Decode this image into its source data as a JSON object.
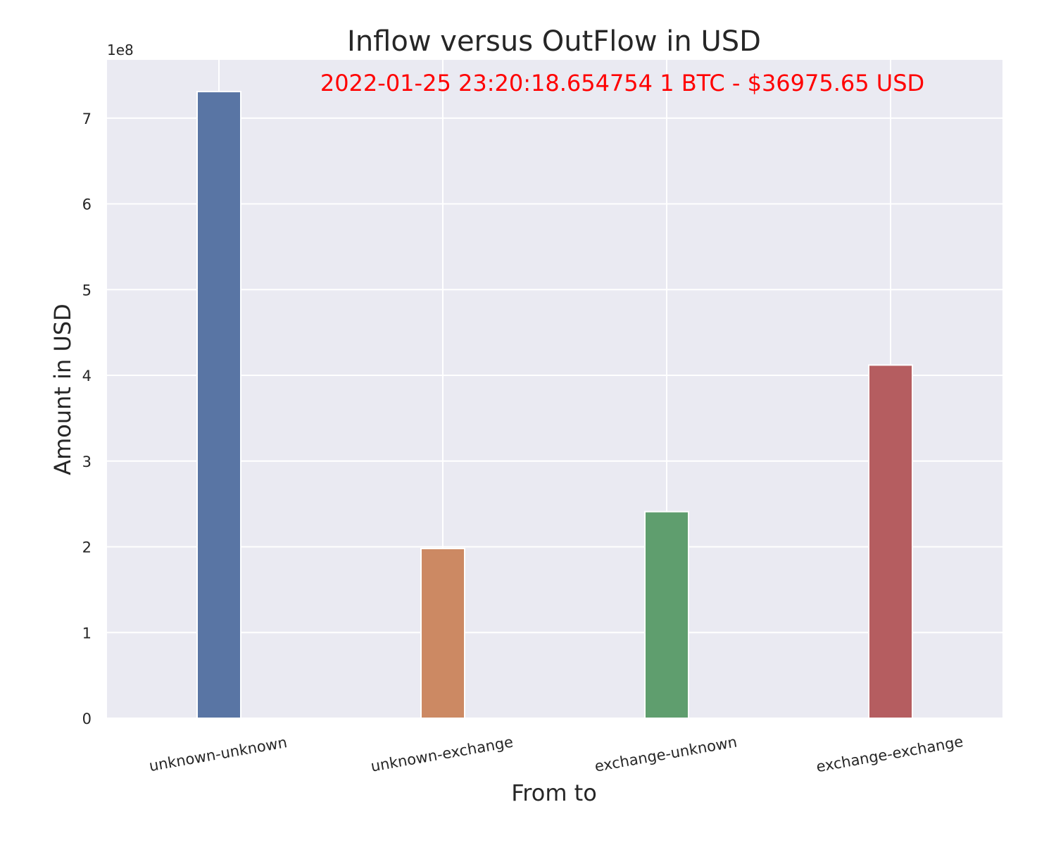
{
  "chart_data": {
    "type": "bar",
    "title": "Inflow versus OutFlow in USD",
    "annotation": "2022-01-25 23:20:18.654754 1 BTC - $36975.65 USD",
    "xlabel": "From to",
    "ylabel": "Amount in USD",
    "y_offset_label": "1e8",
    "y_scale": 100000000,
    "categories": [
      "unknown-unknown",
      "unknown-exchange",
      "exchange-unknown",
      "exchange-exchange"
    ],
    "values": [
      731000000,
      198000000,
      241000000,
      412000000
    ],
    "colors": [
      "#5975a4",
      "#cc8963",
      "#5f9e6e",
      "#b55d60"
    ],
    "ylim": [
      0,
      768000000
    ],
    "yticks": [
      0,
      100000000,
      200000000,
      300000000,
      400000000,
      500000000,
      600000000,
      700000000
    ],
    "ytick_labels": [
      "0",
      "1",
      "2",
      "3",
      "4",
      "5",
      "6",
      "7"
    ],
    "grid": true,
    "background_color": "#eaeaf2",
    "grid_color": "#ffffff"
  }
}
